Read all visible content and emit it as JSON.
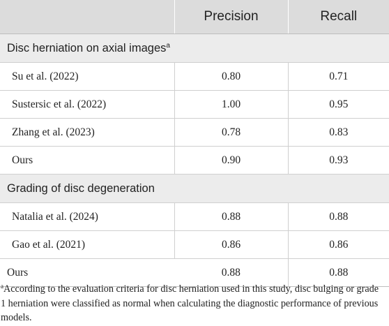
{
  "header": {
    "col1": "",
    "col2": "Precision",
    "col3": "Recall"
  },
  "sections": [
    {
      "title": "Disc herniation on axial images",
      "title_sup": "a",
      "rows": [
        {
          "name": "Su et al. (2022)",
          "precision": "0.80",
          "recall": "0.71"
        },
        {
          "name": "Sustersic et al. (2022)",
          "precision": "1.00",
          "recall": "0.95"
        },
        {
          "name": "Zhang et al. (2023)",
          "precision": "0.78",
          "recall": "0.83"
        },
        {
          "name": "Ours",
          "precision": "0.90",
          "recall": "0.93"
        }
      ]
    },
    {
      "title": "Grading of disc degeneration",
      "rows": [
        {
          "name": "Natalia et al. (2024)",
          "precision": "0.88",
          "recall": "0.88"
        },
        {
          "name": "Gao et al. (2021)",
          "precision": "0.86",
          "recall": "0.86"
        },
        {
          "name": "Ours",
          "precision": "0.88",
          "recall": "0.88"
        }
      ]
    }
  ],
  "footnote": {
    "marker": "a",
    "text": "According to the evaluation criteria for disc herniation used in this study, disc bulging or grade 1 herniation were classified as normal when calculating the diagnostic performance of previous models."
  }
}
